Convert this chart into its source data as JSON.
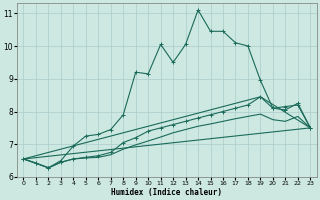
{
  "xlabel": "Humidex (Indice chaleur)",
  "background_color": "#cce8e0",
  "grid_color": "#aacccc",
  "line_color": "#1a6a5a",
  "xlim": [
    -0.5,
    23.5
  ],
  "ylim": [
    6,
    11.3
  ],
  "yticks": [
    6,
    7,
    8,
    9,
    10,
    11
  ],
  "xticks": [
    0,
    1,
    2,
    3,
    4,
    5,
    6,
    7,
    8,
    9,
    10,
    11,
    12,
    13,
    14,
    15,
    16,
    17,
    18,
    19,
    20,
    21,
    22,
    23
  ],
  "curve1_x": [
    0,
    1,
    2,
    3,
    4,
    5,
    6,
    7,
    8,
    9,
    10,
    11,
    12,
    13,
    14,
    15,
    16,
    17,
    18,
    19,
    20,
    21,
    22,
    23
  ],
  "curve1_y": [
    6.55,
    6.42,
    6.28,
    6.5,
    6.95,
    7.25,
    7.3,
    7.45,
    7.9,
    9.2,
    9.15,
    10.05,
    9.5,
    10.05,
    11.1,
    10.45,
    10.45,
    10.1,
    10.0,
    8.95,
    8.1,
    8.15,
    8.2,
    7.5
  ],
  "curve2_x": [
    0,
    1,
    2,
    3,
    4,
    5,
    6,
    7,
    8,
    9,
    10,
    11,
    12,
    13,
    14,
    15,
    16,
    17,
    18,
    19,
    20,
    21,
    22,
    23
  ],
  "curve2_y": [
    6.55,
    6.42,
    6.28,
    6.45,
    6.55,
    6.6,
    6.65,
    6.75,
    7.05,
    7.2,
    7.4,
    7.5,
    7.6,
    7.7,
    7.8,
    7.9,
    8.0,
    8.1,
    8.2,
    8.45,
    8.1,
    8.05,
    8.25,
    7.5
  ],
  "curve3_x": [
    0,
    1,
    2,
    3,
    4,
    5,
    6,
    7,
    8,
    9,
    10,
    11,
    12,
    13,
    14,
    15,
    16,
    17,
    18,
    19,
    20,
    21,
    22,
    23
  ],
  "curve3_y": [
    6.55,
    6.42,
    6.28,
    6.45,
    6.55,
    6.58,
    6.6,
    6.68,
    6.85,
    6.98,
    7.1,
    7.22,
    7.35,
    7.45,
    7.55,
    7.62,
    7.7,
    7.78,
    7.85,
    7.92,
    7.75,
    7.7,
    7.85,
    7.5
  ],
  "curve4_x": [
    0,
    23
  ],
  "curve4_y": [
    6.55,
    7.5
  ],
  "curve5_x": [
    0,
    19,
    23
  ],
  "curve5_y": [
    6.55,
    8.45,
    7.5
  ]
}
